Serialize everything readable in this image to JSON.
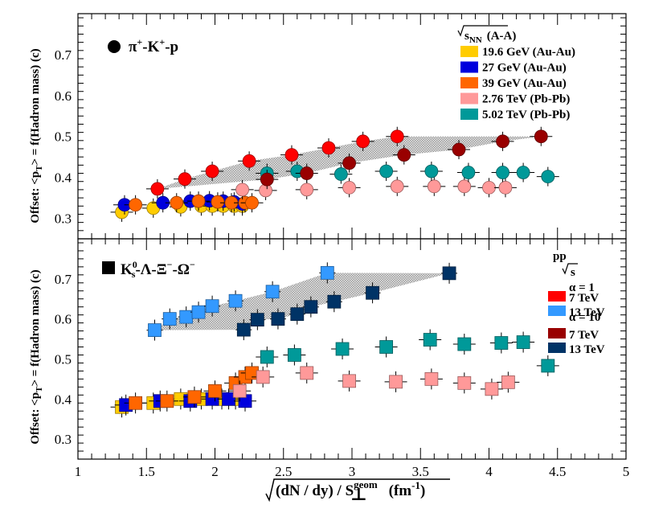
{
  "colors": {
    "au196": "#ffcc00",
    "au27": "#0000dd",
    "au39": "#ff6600",
    "pb276": "#ff9999",
    "pb502": "#009999",
    "pp7a1": "#ff0000",
    "pp13a1": "#3399ff",
    "pp7a10": "#990000",
    "pp13a10": "#003366",
    "band": "#b8b8b8"
  },
  "legend_top": {
    "header_root": "s",
    "header_sub": "NN",
    "header_suffix": "(A-A)",
    "entries": [
      {
        "label": "19.6 GeV (Au-Au)",
        "color_key": "au196"
      },
      {
        "label": "27 GeV (Au-Au)",
        "color_key": "au27"
      },
      {
        "label": "39 GeV (Au-Au)",
        "color_key": "au39"
      },
      {
        "label": "2.76 TeV (Pb-Pb)",
        "color_key": "pb276"
      },
      {
        "label": "5.02 TeV (Pb-Pb)",
        "color_key": "pb502"
      }
    ]
  },
  "legend_pp": {
    "header": "pp",
    "sqrt_s": "s",
    "alpha1": "α = 1",
    "alpha10": "α = 10",
    "entries": [
      {
        "label": "7 TeV",
        "color_key": "pp7a1",
        "group": "alpha1"
      },
      {
        "label": "13 TeV",
        "color_key": "pp13a1",
        "group": "alpha1"
      },
      {
        "label": "7 TeV",
        "color_key": "pp7a10",
        "group": "alpha10"
      },
      {
        "label": "13 TeV",
        "color_key": "pp13a10",
        "group": "alpha10"
      }
    ]
  },
  "chart_data": [
    {
      "type": "scatter",
      "panel": "top",
      "title": "π+-K+-p",
      "title_parts": [
        "π",
        "+",
        "-K",
        "+",
        "-p"
      ],
      "ylabel": "Offset: <pT> = f(Hadron mass) (c)",
      "ylabel_parts": [
        "Offset: <p",
        "T",
        "> = f(Hadron mass) (c)"
      ],
      "ylim": [
        0.25,
        0.8
      ],
      "yticks": [
        "0.3",
        "0.4",
        "0.5",
        "0.6",
        "0.7"
      ],
      "xlim": [
        1,
        5
      ],
      "series": [
        {
          "name": "19.6 GeV (Au-Au)",
          "color_key": "au196",
          "marker": "circle",
          "x": [
            1.32,
            1.55,
            1.75,
            1.9,
            1.98,
            2.06,
            2.14,
            2.2
          ],
          "y": [
            0.315,
            0.325,
            0.328,
            0.33,
            0.33,
            0.33,
            0.33,
            0.33
          ]
        },
        {
          "name": "27 GeV (Au-Au)",
          "color_key": "au27",
          "marker": "circle",
          "x": [
            1.34,
            1.62,
            1.82,
            1.96,
            2.06,
            2.14,
            2.2
          ],
          "y": [
            0.333,
            0.338,
            0.342,
            0.343,
            0.342,
            0.34,
            0.335
          ]
        },
        {
          "name": "39 GeV (Au-Au)",
          "color_key": "au39",
          "marker": "circle",
          "x": [
            1.42,
            1.72,
            1.88,
            2.02,
            2.12,
            2.22,
            2.27
          ],
          "y": [
            0.333,
            0.338,
            0.342,
            0.34,
            0.338,
            0.338,
            0.338
          ]
        },
        {
          "name": "2.76 TeV (Pb-Pb)",
          "color_key": "pb276",
          "marker": "circle",
          "x": [
            2.2,
            2.37,
            2.67,
            2.98,
            3.33,
            3.6,
            3.82,
            4.0,
            4.12
          ],
          "y": [
            0.37,
            0.368,
            0.37,
            0.375,
            0.378,
            0.378,
            0.378,
            0.375,
            0.375
          ]
        },
        {
          "name": "5.02 TeV (Pb-Pb)",
          "color_key": "pb502",
          "marker": "circle",
          "x": [
            2.38,
            2.6,
            2.92,
            3.25,
            3.58,
            3.85,
            4.1,
            4.25,
            4.43
          ],
          "y": [
            0.41,
            0.415,
            0.408,
            0.415,
            0.415,
            0.412,
            0.412,
            0.412,
            0.402
          ]
        },
        {
          "name": "7 TeV α = 1",
          "color_key": "pp7a1",
          "marker": "circle",
          "x": [
            1.58,
            1.78,
            1.98,
            2.25,
            2.56,
            2.83,
            3.08,
            3.33
          ],
          "y": [
            0.372,
            0.396,
            0.415,
            0.44,
            0.455,
            0.472,
            0.488,
            0.5
          ]
        },
        {
          "name": "7 TeV α = 10",
          "color_key": "pp7a10",
          "marker": "circle",
          "x": [
            2.38,
            2.67,
            2.98,
            3.38,
            3.78,
            4.1,
            4.38
          ],
          "y": [
            0.395,
            0.41,
            0.435,
            0.455,
            0.468,
            0.488,
            0.5
          ]
        }
      ]
    },
    {
      "type": "scatter",
      "panel": "bottom",
      "title": "K0s-Λ-Ξ−-Ω−",
      "ylabel": "Offset: <pT> = f(Hadron mass) (c)",
      "ylabel_parts": [
        "Offset: <p",
        "T",
        "> = f(Hadron mass) (c)"
      ],
      "ylim": [
        0.25,
        0.8
      ],
      "yticks": [
        "0.3",
        "0.4",
        "0.5",
        "0.6",
        "0.7"
      ],
      "xlim": [
        1,
        5
      ],
      "xticks": [
        "1",
        "1.5",
        "2",
        "2.5",
        "3",
        "3.5",
        "4",
        "4.5",
        "5"
      ],
      "xlabel": "√((dN / dy) / S⊥geom) (fm-1)",
      "series": [
        {
          "name": "19.6 GeV (Au-Au)",
          "color_key": "au196",
          "marker": "square",
          "x": [
            1.32,
            1.55,
            1.75,
            1.9,
            2.05,
            2.15
          ],
          "y": [
            0.38,
            0.39,
            0.4,
            0.4,
            0.4,
            0.4
          ]
        },
        {
          "name": "27 GeV (Au-Au)",
          "color_key": "au27",
          "marker": "square",
          "x": [
            1.35,
            1.6,
            1.82,
            1.98,
            2.1,
            2.22
          ],
          "y": [
            0.385,
            0.395,
            0.395,
            0.4,
            0.4,
            0.395
          ]
        },
        {
          "name": "39 GeV (Au-Au)",
          "color_key": "au39",
          "marker": "square",
          "x": [
            1.42,
            1.65,
            1.85,
            2.0,
            2.15,
            2.22,
            2.27
          ],
          "y": [
            0.39,
            0.395,
            0.405,
            0.42,
            0.44,
            0.455,
            0.465
          ]
        },
        {
          "name": "2.76 TeV (Pb-Pb)",
          "color_key": "pb276",
          "marker": "square",
          "x": [
            2.18,
            2.35,
            2.67,
            2.98,
            3.32,
            3.58,
            3.82,
            4.02,
            4.14
          ],
          "y": [
            0.42,
            0.455,
            0.465,
            0.445,
            0.443,
            0.45,
            0.44,
            0.425,
            0.442
          ]
        },
        {
          "name": "5.02 TeV (Pb-Pb)",
          "color_key": "pb502",
          "marker": "square",
          "x": [
            2.38,
            2.58,
            2.93,
            3.25,
            3.57,
            3.82,
            4.09,
            4.25,
            4.43
          ],
          "y": [
            0.505,
            0.51,
            0.525,
            0.53,
            0.548,
            0.537,
            0.54,
            0.542,
            0.483
          ]
        },
        {
          "name": "13 TeV α = 1",
          "color_key": "pp13a1",
          "marker": "square",
          "x": [
            1.56,
            1.67,
            1.79,
            1.88,
            1.98,
            2.15,
            2.42,
            2.82
          ],
          "y": [
            0.572,
            0.6,
            0.605,
            0.617,
            0.632,
            0.645,
            0.668,
            0.715
          ]
        },
        {
          "name": "13 TeV α = 10",
          "color_key": "pp13a10",
          "marker": "square",
          "x": [
            2.21,
            2.31,
            2.46,
            2.6,
            2.7,
            2.87,
            3.15,
            3.71
          ],
          "y": [
            0.573,
            0.598,
            0.6,
            0.612,
            0.63,
            0.643,
            0.665,
            0.714
          ]
        }
      ]
    }
  ]
}
